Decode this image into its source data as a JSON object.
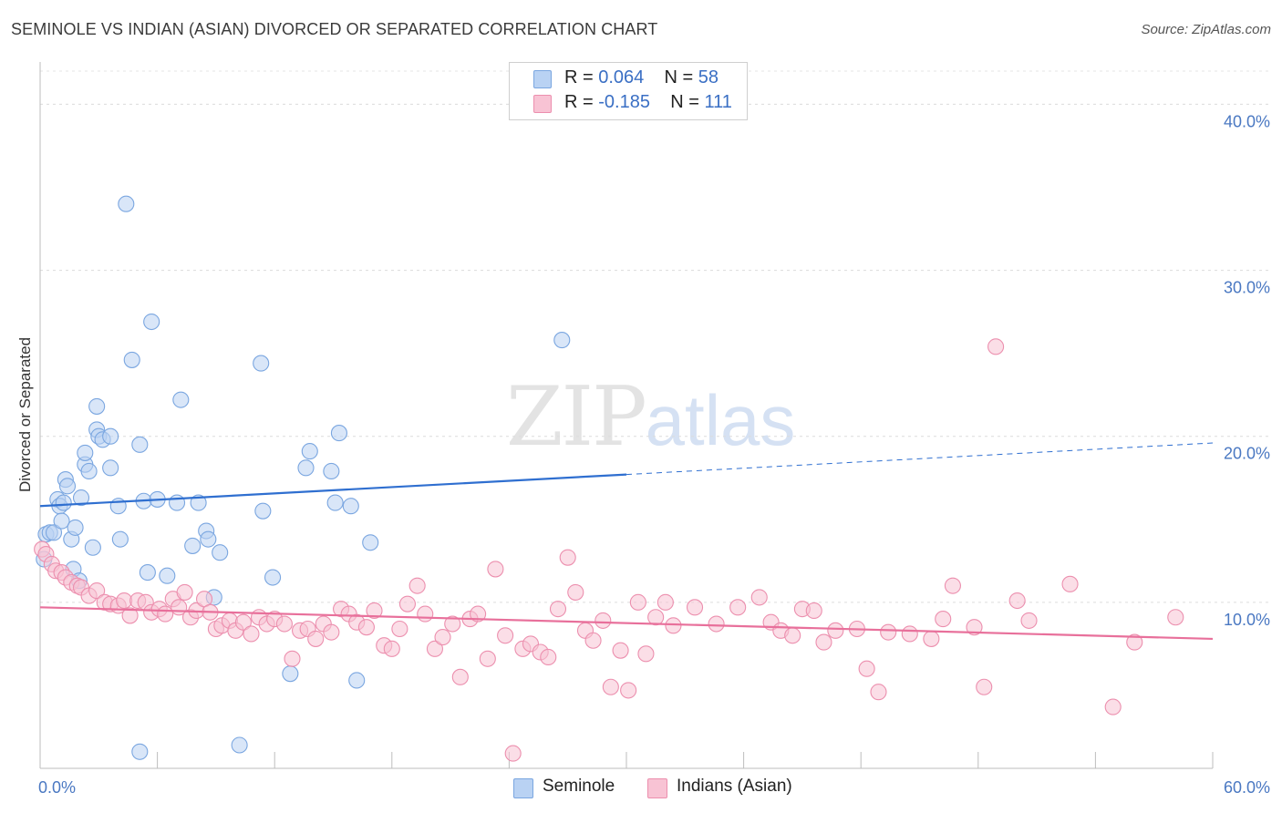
{
  "header": {
    "title": "SEMINOLE VS INDIAN (ASIAN) DIVORCED OR SEPARATED CORRELATION CHART",
    "source": "Source: ZipAtlas.com"
  },
  "watermark": {
    "zip": "ZIP",
    "atlas": "atlas"
  },
  "legend": {
    "rows": [
      {
        "r_label": "R = ",
        "r_value": "0.064",
        "n_label": "N = ",
        "n_value": "58",
        "color": "#a9c8f0"
      },
      {
        "r_label": "R = ",
        "r_value": "-0.185",
        "n_label": "N = ",
        "n_value": "111",
        "color": "#f7b6cb"
      }
    ]
  },
  "bottom_legend": [
    {
      "label": "Seminole",
      "color": "#a9c8f0"
    },
    {
      "label": "Indians (Asian)",
      "color": "#f7b6cb"
    }
  ],
  "chart_data": {
    "type": "scatter",
    "ylabel": "Divorced or Separated",
    "xlim": [
      0,
      60
    ],
    "ylim": [
      0,
      42
    ],
    "y_ticks": [
      {
        "value": 10,
        "label": "10.0%"
      },
      {
        "value": 20,
        "label": "20.0%"
      },
      {
        "value": 30,
        "label": "30.0%"
      },
      {
        "value": 40,
        "label": "40.0%"
      }
    ],
    "x_ticks": [
      {
        "value": 0,
        "label": "0.0%"
      },
      {
        "value": 60,
        "label": "60.0%"
      }
    ],
    "x_minor_ticks": [
      6,
      12,
      18,
      24,
      30,
      36,
      42,
      48,
      54,
      60
    ],
    "grid": true,
    "series": [
      {
        "name": "Seminole",
        "color": "#7aa6e0",
        "fill": "#b9d2f3",
        "line_color": "#2f6fd0",
        "trend": {
          "x0": 0,
          "y0": 15.8,
          "x1": 30,
          "y1": 17.7,
          "dash_to_x": 60,
          "dash_to_y": 19.6
        },
        "points": [
          [
            0.2,
            12.6
          ],
          [
            0.3,
            14.1
          ],
          [
            0.5,
            14.2
          ],
          [
            0.7,
            14.2
          ],
          [
            0.9,
            16.2
          ],
          [
            1.0,
            15.8
          ],
          [
            1.1,
            14.9
          ],
          [
            1.2,
            16.0
          ],
          [
            1.3,
            17.4
          ],
          [
            1.4,
            17.0
          ],
          [
            1.6,
            13.8
          ],
          [
            1.7,
            12.0
          ],
          [
            1.8,
            14.5
          ],
          [
            2.0,
            11.3
          ],
          [
            2.1,
            16.3
          ],
          [
            2.3,
            18.3
          ],
          [
            2.3,
            19.0
          ],
          [
            2.5,
            17.9
          ],
          [
            2.7,
            13.3
          ],
          [
            2.9,
            21.8
          ],
          [
            2.9,
            20.4
          ],
          [
            3.0,
            20.0
          ],
          [
            3.2,
            19.8
          ],
          [
            3.6,
            18.1
          ],
          [
            3.6,
            20.0
          ],
          [
            4.0,
            15.8
          ],
          [
            4.1,
            13.8
          ],
          [
            4.4,
            34.0
          ],
          [
            4.7,
            24.6
          ],
          [
            5.1,
            19.5
          ],
          [
            5.3,
            16.1
          ],
          [
            5.5,
            11.8
          ],
          [
            5.7,
            26.9
          ],
          [
            6.0,
            16.2
          ],
          [
            6.5,
            11.6
          ],
          [
            7.0,
            16.0
          ],
          [
            7.2,
            22.2
          ],
          [
            7.8,
            13.4
          ],
          [
            8.1,
            16.0
          ],
          [
            8.5,
            14.3
          ],
          [
            8.6,
            13.8
          ],
          [
            8.9,
            10.3
          ],
          [
            9.2,
            13.0
          ],
          [
            11.3,
            24.4
          ],
          [
            11.4,
            15.5
          ],
          [
            11.9,
            11.5
          ],
          [
            12.8,
            5.7
          ],
          [
            13.6,
            18.1
          ],
          [
            13.8,
            19.1
          ],
          [
            14.9,
            17.9
          ],
          [
            15.1,
            16.0
          ],
          [
            15.3,
            20.2
          ],
          [
            15.9,
            15.8
          ],
          [
            16.2,
            5.3
          ],
          [
            16.9,
            13.6
          ],
          [
            26.7,
            25.8
          ],
          [
            5.1,
            1.0
          ],
          [
            10.2,
            1.4
          ]
        ]
      },
      {
        "name": "Indians (Asian)",
        "color": "#ec8fae",
        "fill": "#f8c3d4",
        "line_color": "#e8709b",
        "trend": {
          "x0": 0,
          "y0": 9.7,
          "x1": 60,
          "y1": 7.8
        },
        "points": [
          [
            0.1,
            13.2
          ],
          [
            0.3,
            12.9
          ],
          [
            0.6,
            12.3
          ],
          [
            0.8,
            11.9
          ],
          [
            1.1,
            11.8
          ],
          [
            1.3,
            11.5
          ],
          [
            1.6,
            11.2
          ],
          [
            1.9,
            11.0
          ],
          [
            2.1,
            10.9
          ],
          [
            2.5,
            10.4
          ],
          [
            2.9,
            10.7
          ],
          [
            3.3,
            10.0
          ],
          [
            3.6,
            9.9
          ],
          [
            4.0,
            9.8
          ],
          [
            4.3,
            10.1
          ],
          [
            4.6,
            9.2
          ],
          [
            5.0,
            10.1
          ],
          [
            5.4,
            10.0
          ],
          [
            5.7,
            9.4
          ],
          [
            6.1,
            9.6
          ],
          [
            6.4,
            9.3
          ],
          [
            6.8,
            10.2
          ],
          [
            7.1,
            9.7
          ],
          [
            7.4,
            10.6
          ],
          [
            7.7,
            9.1
          ],
          [
            8.0,
            9.5
          ],
          [
            8.4,
            10.2
          ],
          [
            8.7,
            9.4
          ],
          [
            9.0,
            8.4
          ],
          [
            9.3,
            8.6
          ],
          [
            9.7,
            8.9
          ],
          [
            10.0,
            8.3
          ],
          [
            10.4,
            8.8
          ],
          [
            10.8,
            8.1
          ],
          [
            11.2,
            9.1
          ],
          [
            11.6,
            8.7
          ],
          [
            12.0,
            9.0
          ],
          [
            12.5,
            8.7
          ],
          [
            12.9,
            6.6
          ],
          [
            13.3,
            8.3
          ],
          [
            13.7,
            8.4
          ],
          [
            14.1,
            7.8
          ],
          [
            14.5,
            8.7
          ],
          [
            14.9,
            8.2
          ],
          [
            15.4,
            9.6
          ],
          [
            15.8,
            9.3
          ],
          [
            16.2,
            8.8
          ],
          [
            16.7,
            8.5
          ],
          [
            17.1,
            9.5
          ],
          [
            17.6,
            7.4
          ],
          [
            18.0,
            7.2
          ],
          [
            18.4,
            8.4
          ],
          [
            18.8,
            9.9
          ],
          [
            19.3,
            11.0
          ],
          [
            19.7,
            9.3
          ],
          [
            20.2,
            7.2
          ],
          [
            20.6,
            7.9
          ],
          [
            21.1,
            8.7
          ],
          [
            21.5,
            5.5
          ],
          [
            22.0,
            9.0
          ],
          [
            22.4,
            9.3
          ],
          [
            22.9,
            6.6
          ],
          [
            23.3,
            12.0
          ],
          [
            23.8,
            8.0
          ],
          [
            24.2,
            0.9
          ],
          [
            24.7,
            7.2
          ],
          [
            25.1,
            7.5
          ],
          [
            25.6,
            7.0
          ],
          [
            26.0,
            6.7
          ],
          [
            26.5,
            9.6
          ],
          [
            27.0,
            12.7
          ],
          [
            27.4,
            10.6
          ],
          [
            27.9,
            8.3
          ],
          [
            28.3,
            7.7
          ],
          [
            28.8,
            8.9
          ],
          [
            29.2,
            4.9
          ],
          [
            29.7,
            7.1
          ],
          [
            30.1,
            4.7
          ],
          [
            30.6,
            10.0
          ],
          [
            31.0,
            6.9
          ],
          [
            31.5,
            9.1
          ],
          [
            32.0,
            10.0
          ],
          [
            32.4,
            8.6
          ],
          [
            33.5,
            9.7
          ],
          [
            34.6,
            8.7
          ],
          [
            35.7,
            9.7
          ],
          [
            36.8,
            10.3
          ],
          [
            37.4,
            8.8
          ],
          [
            37.9,
            8.3
          ],
          [
            38.5,
            8.0
          ],
          [
            39.0,
            9.6
          ],
          [
            39.6,
            9.5
          ],
          [
            40.1,
            7.6
          ],
          [
            40.7,
            8.3
          ],
          [
            41.8,
            8.4
          ],
          [
            42.3,
            6.0
          ],
          [
            42.9,
            4.6
          ],
          [
            43.4,
            8.2
          ],
          [
            44.5,
            8.1
          ],
          [
            45.6,
            7.8
          ],
          [
            46.2,
            9.0
          ],
          [
            46.7,
            11.0
          ],
          [
            47.8,
            8.5
          ],
          [
            48.3,
            4.9
          ],
          [
            48.9,
            25.4
          ],
          [
            50.0,
            10.1
          ],
          [
            50.6,
            8.9
          ],
          [
            52.7,
            11.1
          ],
          [
            54.9,
            3.7
          ],
          [
            56.0,
            7.6
          ],
          [
            58.1,
            9.1
          ]
        ]
      }
    ]
  }
}
